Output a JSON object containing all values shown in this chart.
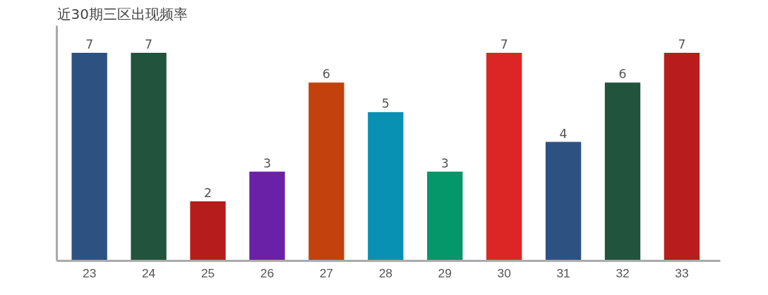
{
  "chart_data": {
    "type": "bar",
    "title": "近30期三区出现频率",
    "categories": [
      "23",
      "24",
      "25",
      "26",
      "27",
      "28",
      "29",
      "30",
      "31",
      "32",
      "33"
    ],
    "values": [
      7,
      7,
      2,
      3,
      6,
      5,
      3,
      7,
      4,
      6,
      7
    ],
    "colors": [
      "#2d5282",
      "#22533d",
      "#b71c1c",
      "#6a21a8",
      "#c2410c",
      "#0891b2",
      "#059669",
      "#dc2626",
      "#2d5282",
      "#22533d",
      "#b91c1c"
    ],
    "data_labels": true,
    "tick_labels": "x",
    "grid": false
  }
}
